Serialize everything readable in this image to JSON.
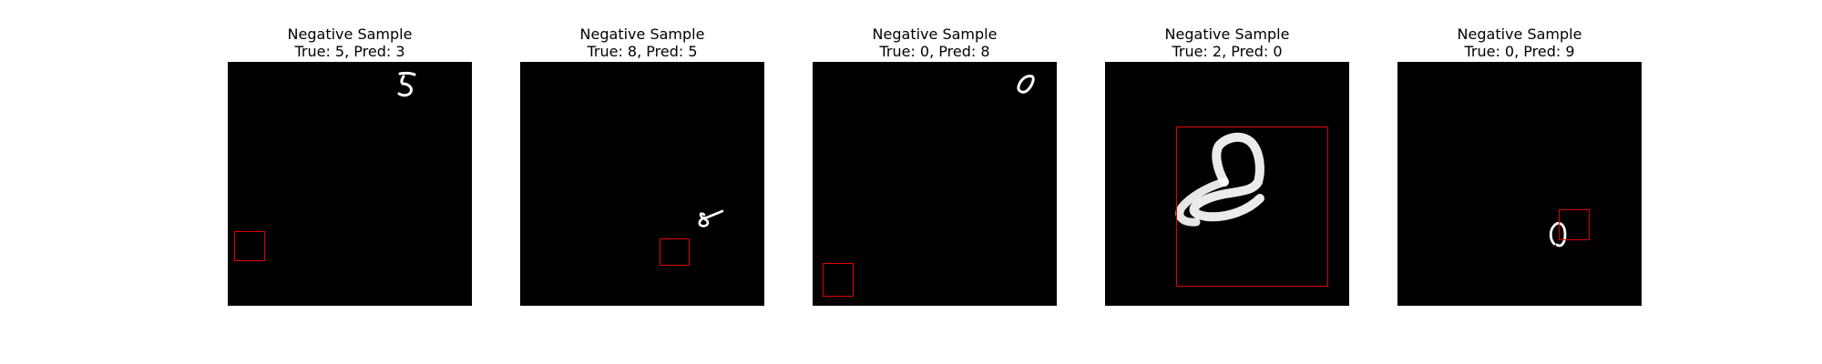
{
  "panels": [
    {
      "line1": "Negative Sample",
      "line2": "True: 5, Pred: 3",
      "digit_glyph": "5"
    },
    {
      "line1": "Negative Sample",
      "line2": "True: 8, Pred: 5",
      "digit_glyph": "8"
    },
    {
      "line1": "Negative Sample",
      "line2": "True: 0, Pred: 8",
      "digit_glyph": "0"
    },
    {
      "line1": "Negative Sample",
      "line2": "True: 2, Pred: 0",
      "digit_glyph": "2"
    },
    {
      "line1": "Negative Sample",
      "line2": "True: 0, Pred: 9",
      "digit_glyph": "0"
    }
  ],
  "colors": {
    "background": "#000000",
    "stroke": "#ffffff",
    "box": "#e00000"
  }
}
